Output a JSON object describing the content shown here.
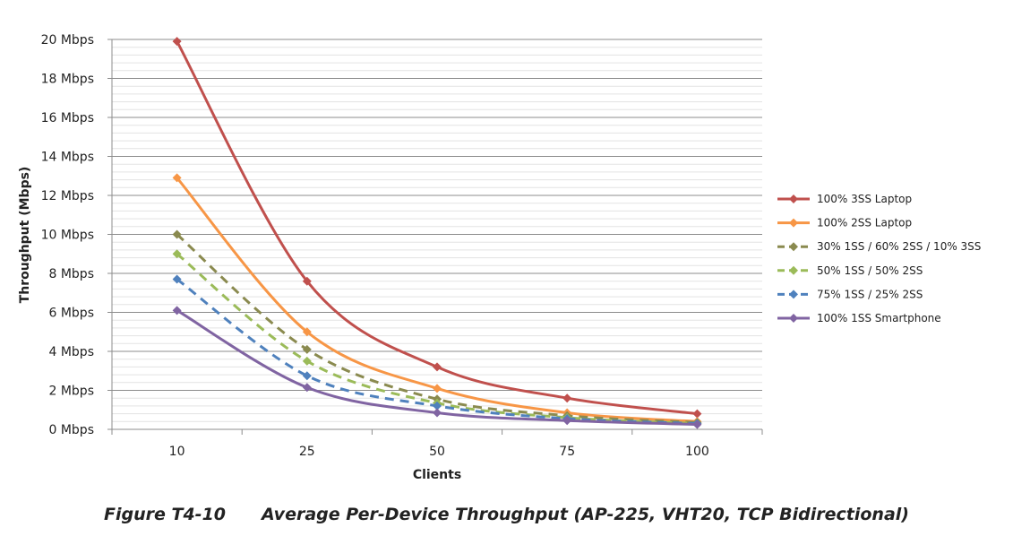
{
  "chart_data": {
    "type": "line",
    "title": "",
    "xlabel": "Clients",
    "ylabel": "Throughput (Mbps)",
    "categories": [
      "10",
      "25",
      "50",
      "75",
      "100"
    ],
    "ylim": [
      0,
      20
    ],
    "y_ticks": [
      "0 Mbps",
      "2 Mbps",
      "4 Mbps",
      "6 Mbps",
      "8 Mbps",
      "10 Mbps",
      "12 Mbps",
      "14 Mbps",
      "16 Mbps",
      "18 Mbps",
      "20 Mbps"
    ],
    "grid": true,
    "legend_position": "right",
    "series": [
      {
        "name": "100% 3SS Laptop",
        "color": "#c0504d",
        "dashed": false,
        "values": [
          19.9,
          7.6,
          3.2,
          1.6,
          0.8
        ]
      },
      {
        "name": "100% 2SS Laptop",
        "color": "#f79646",
        "dashed": false,
        "values": [
          12.9,
          5.0,
          2.1,
          0.85,
          0.4
        ]
      },
      {
        "name": "30% 1SS / 60% 2SS / 10% 3SS",
        "color": "#8a8a4f",
        "dashed": true,
        "values": [
          10.0,
          4.1,
          1.55,
          0.7,
          0.35
        ]
      },
      {
        "name": "50% 1SS / 50% 2SS",
        "color": "#9bbb59",
        "dashed": true,
        "values": [
          9.0,
          3.5,
          1.35,
          0.6,
          0.3
        ]
      },
      {
        "name": "75% 1SS / 25% 2SS",
        "color": "#4f81bd",
        "dashed": true,
        "values": [
          7.7,
          2.75,
          1.2,
          0.55,
          0.3
        ]
      },
      {
        "name": "100% 1SS Smartphone",
        "color": "#8064a2",
        "dashed": false,
        "values": [
          6.1,
          2.15,
          0.85,
          0.45,
          0.25
        ]
      }
    ]
  },
  "caption": {
    "figure": "Figure T4-10",
    "text": "Average Per-Device Throughput (AP-225, VHT20, TCP Bidirectional)"
  }
}
